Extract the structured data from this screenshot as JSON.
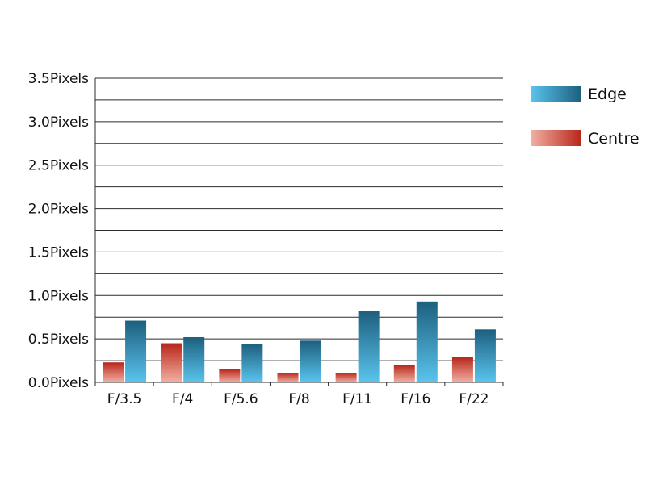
{
  "chart_data": {
    "type": "bar",
    "title": "",
    "xlabel": "",
    "ylabel": "",
    "categories": [
      "F/3.5",
      "F/4",
      "F/5.6",
      "F/8",
      "F/11",
      "F/16",
      "F/22"
    ],
    "series": [
      {
        "name": "Centre",
        "values": [
          0.23,
          0.45,
          0.15,
          0.11,
          0.11,
          0.2,
          0.29
        ],
        "color_light": "#f2b0a4",
        "color_dark": "#b8261a"
      },
      {
        "name": "Edge",
        "values": [
          0.71,
          0.52,
          0.44,
          0.48,
          0.82,
          0.93,
          0.61
        ],
        "color_light": "#5ac4ee",
        "color_dark": "#1d5f7e"
      }
    ],
    "ylim": [
      0,
      3.5
    ],
    "y_ticks": [
      {
        "value": 0.0,
        "label": "0.0Pixels"
      },
      {
        "value": 0.5,
        "label": "0.5Pixels"
      },
      {
        "value": 1.0,
        "label": "1.0Pixels"
      },
      {
        "value": 1.5,
        "label": "1.5Pixels"
      },
      {
        "value": 2.0,
        "label": "2.0Pixels"
      },
      {
        "value": 2.5,
        "label": "2.5Pixels"
      },
      {
        "value": 3.0,
        "label": "3.0Pixels"
      },
      {
        "value": 3.5,
        "label": "3.5Pixels"
      }
    ],
    "minor_grid_step": 0.25,
    "grid": true,
    "legend_position": "top-right",
    "legend_order": [
      "Edge",
      "Centre"
    ]
  }
}
